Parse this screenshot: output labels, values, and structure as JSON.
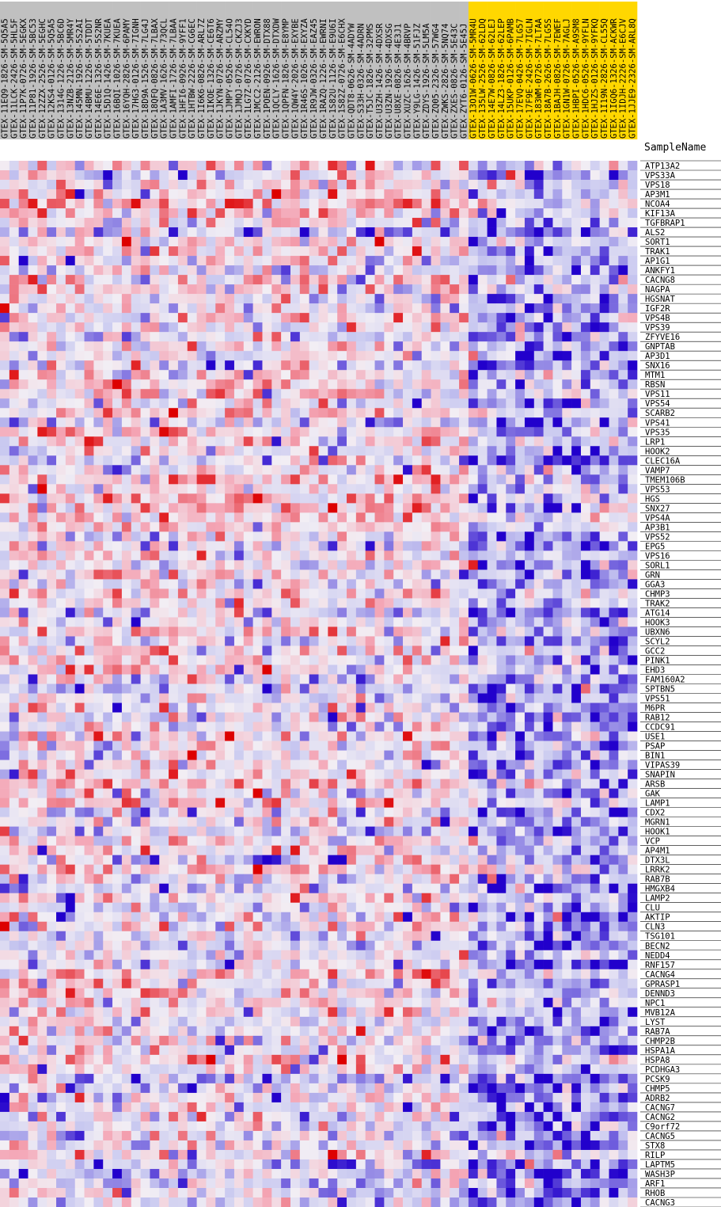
{
  "chart_data": {
    "type": "heatmap",
    "row_header_label": "SampleName",
    "colors": {
      "control_band": "#c0c0c0",
      "case_band": "#ffd700",
      "low": "#2200cc",
      "mid_low": "#c8c8f0",
      "mid": "#f2eef4",
      "mid_high": "#f4a6b6",
      "high": "#dd0000"
    },
    "columns": [
      {
        "name": "GTEX-11EQ9-1826-SM-5Q5A5",
        "group": "control"
      },
      {
        "name": "GTEX-11LCK-2426-SM-5HL5F",
        "group": "control"
      },
      {
        "name": "GTEX-11P7K-0726-SM-5EGKX",
        "group": "control"
      },
      {
        "name": "GTEX-11P81-1926-SM-5BC53",
        "group": "control"
      },
      {
        "name": "GTEX-12ZZX-2526-SM-5EGHC",
        "group": "control"
      },
      {
        "name": "GTEX-12KS4-0126-SM-5Q5A5",
        "group": "control"
      },
      {
        "name": "GTEX-1314G-1226-SM-5BC6D",
        "group": "control"
      },
      {
        "name": "GTEX-13NZB-2126-SM-5MR4Y",
        "group": "control"
      },
      {
        "name": "GTEX-145MN-1926-SM-5S2AI",
        "group": "control"
      },
      {
        "name": "GTEX-14BMU-1226-SM-5TDDT",
        "group": "control"
      },
      {
        "name": "GTEX-14E6E-1326-SM-5S2NR",
        "group": "control"
      },
      {
        "name": "GTEX-15D1Q-1426-SM-7KUEA",
        "group": "control"
      },
      {
        "name": "GTEX-16BQI-1026-SM-7KUEA",
        "group": "control"
      },
      {
        "name": "GTEX-16YQH-2826-SM-6PAMY",
        "group": "control"
      },
      {
        "name": "GTEX-17HG3-0126-SM-7IGNH",
        "group": "control"
      },
      {
        "name": "GTEX-18D9A-1526-SM-7LG4J",
        "group": "control"
      },
      {
        "name": "GTEX-18QFQ-0826-SM-7LBAX",
        "group": "control"
      },
      {
        "name": "GTEX-1A3MV-1626-SM-73QCL",
        "group": "control"
      },
      {
        "name": "GTEX-1AMFI-1726-SM-7LBAA",
        "group": "control"
      },
      {
        "name": "GTEX-1HFI6-0926-SM-9YFF1",
        "group": "control"
      },
      {
        "name": "GTEX-1HTBW-2226-SM-CG6EC",
        "group": "control"
      },
      {
        "name": "GTEX-1I6K6-0826-SM-ARL7Z",
        "group": "control"
      },
      {
        "name": "GTEX-1IKOE-1326-SM-CE6T6",
        "group": "control"
      },
      {
        "name": "GTEX-1JKYN-0726-SM-ARZMY",
        "group": "control"
      },
      {
        "name": "GTEX-1JMPY-0526-SM-CL54O",
        "group": "control"
      },
      {
        "name": "GTEX-1JMQJ-0726-SM-CKZJ3",
        "group": "control"
      },
      {
        "name": "GTEX-1LG7Z-0726-SM-CXKYD",
        "group": "control"
      },
      {
        "name": "GTEX-1MCC2-2126-SM-EWRON",
        "group": "control"
      },
      {
        "name": "GTEX-1POEN-0926-SM-DTX88",
        "group": "control"
      },
      {
        "name": "GTEX-1QCLY-1626-SM-DTXDW",
        "group": "control"
      },
      {
        "name": "GTEX-1QPFN-1826-SM-E8YMP",
        "group": "control"
      },
      {
        "name": "GTEX-1QW4Y-2026-SM-EXYBE",
        "group": "control"
      },
      {
        "name": "GTEX-1R46S-1026-SM-EXYZA",
        "group": "control"
      },
      {
        "name": "GTEX-1R9JW-0326-SM-EAZ45",
        "group": "control"
      },
      {
        "name": "GTEX-1RAZQ-1226-SM-EWRNI",
        "group": "control"
      },
      {
        "name": "GTEX-1S82U-1126-SM-E9U6I",
        "group": "control"
      },
      {
        "name": "GTEX-1S82Z-0726-SM-E6CHX",
        "group": "control"
      },
      {
        "name": "GTEX-QDT8-0626-SM-4ADYW",
        "group": "control"
      },
      {
        "name": "GTEX-S33H-0326-SM-4ADRN",
        "group": "control"
      },
      {
        "name": "GTEX-T5JC-1826-SM-32PMS",
        "group": "control"
      },
      {
        "name": "GTEX-U3ZH-1426-SM-4DXSR",
        "group": "control"
      },
      {
        "name": "GTEX-U3ZN-1926-SM-4DXSG",
        "group": "control"
      },
      {
        "name": "GTEX-U8XE-0826-SM-4E3J1",
        "group": "control"
      },
      {
        "name": "GTEX-XUZC-1626-SM-4BRVP",
        "group": "control"
      },
      {
        "name": "GTEX-Y9LG-1426-SM-51FJZ",
        "group": "control"
      },
      {
        "name": "GTEX-ZDYS-1926-SM-5LM5A",
        "group": "control"
      },
      {
        "name": "GTEX-ZQ05-2326-SM-57WG4",
        "group": "control"
      },
      {
        "name": "GTEX-ZWKS-2826-SM-5NQ74",
        "group": "control"
      },
      {
        "name": "GTEX-ZXES-0826-SM-5E43C",
        "group": "control"
      },
      {
        "name": "GTEX-ZYT6-0126-SM-5E45J",
        "group": "control"
      },
      {
        "name": "GTEX-13O1W-0626-SM-5MR4U",
        "group": "case"
      },
      {
        "name": "GTEX-135LW-2526-SM-62LDQ",
        "group": "case"
      },
      {
        "name": "GTEX-14E7W-0826-SM-62LEJ",
        "group": "case"
      },
      {
        "name": "GTEX-14LZ3-1826-SM-62LEP",
        "group": "case"
      },
      {
        "name": "GTEX-15UKP-0126-SM-6PAMB",
        "group": "case"
      },
      {
        "name": "GTEX-17EVQ-0426-SM-7LG57",
        "group": "case"
      },
      {
        "name": "GTEX-17F9E-2426-SM-7IGLN",
        "group": "case"
      },
      {
        "name": "GTEX-183WM-0726-SM-7LTAA",
        "group": "case"
      },
      {
        "name": "GTEX-18A7B-2626-SM-7LG5S",
        "group": "case"
      },
      {
        "name": "GTEX-1BAJH-0826-SM-7EWEF",
        "group": "case"
      },
      {
        "name": "GTEX-1GN1W-0726-SM-7AGLJ",
        "group": "case"
      },
      {
        "name": "GTEX-1HBPI-0526-SM-A9SM8",
        "group": "case"
      },
      {
        "name": "GTEX-1HDC6-0526-SM-9YFLN",
        "group": "case"
      },
      {
        "name": "GTEX-1HJZS-0126-SM-9YFKQ",
        "group": "case"
      },
      {
        "name": "GTEX-1I19N-2826-SM-CL55Q",
        "group": "case"
      },
      {
        "name": "GTEX-1IGQ6-1326-SM-ACKWR",
        "group": "case"
      },
      {
        "name": "GTEX-1IDJH-2226-SM-E6CJV",
        "group": "case"
      },
      {
        "name": "GTEX-1JJE9-2326-SM-ARL8Q",
        "group": "case"
      }
    ],
    "rows": [
      "ATP13A2",
      "VPS33A",
      "VPS18",
      "AP3M1",
      "NCOA4",
      "KIF13A",
      "TGFBRAP1",
      "ALS2",
      "SORT1",
      "TRAK1",
      "AP1G1",
      "ANKFY1",
      "CACNG8",
      "NAGPA",
      "HGSNAT",
      "IGF2R",
      "VPS4B",
      "VPS39",
      "ZFYVE16",
      "GNPTAB",
      "AP3D1",
      "SNX16",
      "MTM1",
      "RBSN",
      "VPS11",
      "VPS54",
      "SCARB2",
      "VPS41",
      "VPS35",
      "LRP1",
      "HOOK2",
      "CLEC16A",
      "VAMP7",
      "TMEM106B",
      "VPS53",
      "HGS",
      "SNX27",
      "VPS4A",
      "AP3B1",
      "VPS52",
      "EPG5",
      "VPS16",
      "SORL1",
      "GRN",
      "GGA3",
      "CHMP3",
      "TRAK2",
      "ATG14",
      "HOOK3",
      "UBXN6",
      "SCYL2",
      "GCC2",
      "PINK1",
      "EHD3",
      "FAM160A2",
      "SPTBN5",
      "VPS51",
      "M6PR",
      "RAB12",
      "CCDC91",
      "USE1",
      "PSAP",
      "BIN1",
      "VIPAS39",
      "SNAPIN",
      "ARSB",
      "GAK",
      "LAMP1",
      "CDX2",
      "MGRN1",
      "HOOK1",
      "VCP",
      "AP4M1",
      "DTX3L",
      "LRRK2",
      "RAB7B",
      "HMGXB4",
      "LAMP2",
      "CLU",
      "AKTIP",
      "CLN3",
      "TSG101",
      "BECN2",
      "NEDD4",
      "RNF157",
      "CACNG4",
      "GPRASP1",
      "DENND3",
      "NPC1",
      "MVB12A",
      "LYST",
      "RAB7A",
      "CHMP2B",
      "HSPA1A",
      "HSPA8",
      "PCDHGA3",
      "PCSK9",
      "CHMP5",
      "ADRB2",
      "CACNG7",
      "CACNG2",
      "C9orf72",
      "CACNG5",
      "STX8",
      "RILP",
      "LAPTM5",
      "WASH3P",
      "ARF1",
      "RHOB",
      "CACNG3"
    ],
    "value_range": [
      -3,
      3
    ],
    "seed": 9112024
  }
}
